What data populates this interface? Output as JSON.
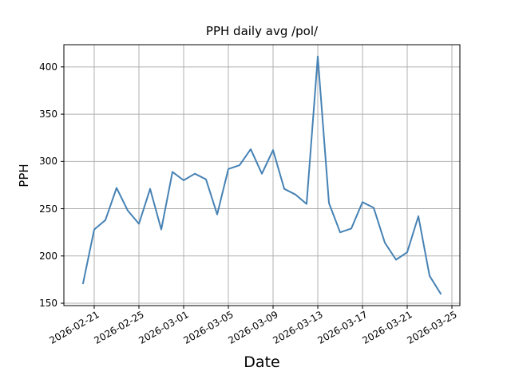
{
  "chart_data": {
    "type": "line",
    "title": "PPH daily avg /pol/",
    "xlabel": "Date",
    "ylabel": "PPH",
    "x": [
      "2026-02-20",
      "2026-02-21",
      "2026-02-22",
      "2026-02-23",
      "2026-02-24",
      "2026-02-25",
      "2026-02-26",
      "2026-02-27",
      "2026-02-28",
      "2026-03-01",
      "2026-03-02",
      "2026-03-03",
      "2026-03-04",
      "2026-03-05",
      "2026-03-06",
      "2026-03-07",
      "2026-03-08",
      "2026-03-09",
      "2026-03-10",
      "2026-03-11",
      "2026-03-12",
      "2026-03-13",
      "2026-03-14",
      "2026-03-15",
      "2026-03-16",
      "2026-03-17",
      "2026-03-18",
      "2026-03-19",
      "2026-03-20",
      "2026-03-21",
      "2026-03-22",
      "2026-03-23",
      "2026-03-24"
    ],
    "values": [
      171,
      228,
      238,
      272,
      248,
      234,
      271,
      228,
      289,
      280,
      287,
      281,
      244,
      292,
      296,
      313,
      287,
      312,
      271,
      265,
      255,
      411,
      256,
      225,
      229,
      257,
      251,
      214,
      196,
      204,
      242,
      179,
      160
    ],
    "x_tick_labels": [
      "2026-02-21",
      "2026-02-25",
      "2026-03-01",
      "2026-03-05",
      "2026-03-09",
      "2026-03-13",
      "2026-03-17",
      "2026-03-21",
      "2026-03-25"
    ],
    "y_tick_labels": [
      150,
      200,
      250,
      300,
      350,
      400
    ],
    "ylim": [
      147.5,
      423.5
    ],
    "xlim_days": [
      -1.714,
      33.714
    ],
    "grid": true,
    "legend_position": "none",
    "line_color": "#4682b4",
    "grid_color": "#b0b0b0",
    "spine_color": "#000000",
    "background_color": "#ffffff"
  }
}
